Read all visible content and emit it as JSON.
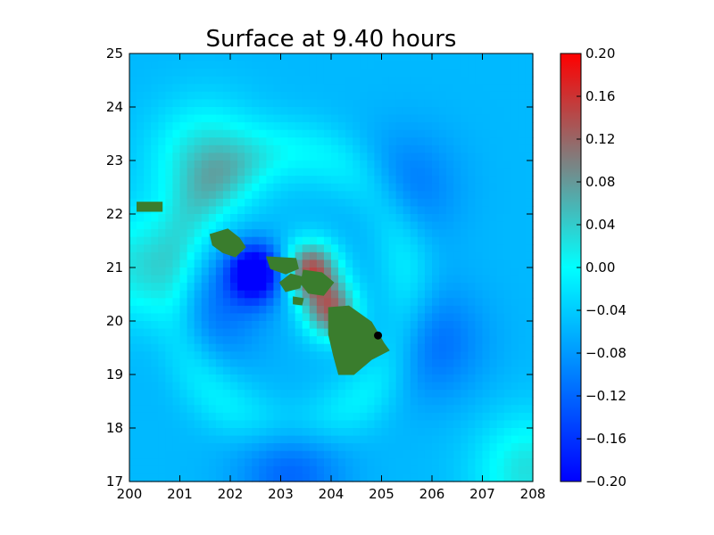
{
  "chart_data": {
    "type": "heatmap",
    "title": "Surface at 9.40 hours",
    "xlabel": "",
    "ylabel": "",
    "xlim": [
      200,
      208
    ],
    "ylim": [
      17,
      25
    ],
    "x_ticks": [
      "200",
      "201",
      "202",
      "203",
      "204",
      "205",
      "206",
      "207",
      "208"
    ],
    "y_ticks": [
      "17",
      "18",
      "19",
      "20",
      "21",
      "22",
      "23",
      "24",
      "25"
    ],
    "colorbar": {
      "range": [
        -0.2,
        0.2
      ],
      "ticks": [
        "0.20",
        "0.16",
        "0.12",
        "0.08",
        "0.04",
        "0.00",
        "−0.04",
        "−0.08",
        "−0.12",
        "−0.16",
        "−0.20"
      ],
      "colors": {
        "-0.20": "#0000ff",
        "0.00": "#00ffff",
        "0.10": "#7f7f7f",
        "0.20": "#ff0000"
      }
    },
    "land_color": "#3a7d2d",
    "marker": {
      "x": 204.93,
      "y": 19.73,
      "color": "#000000"
    },
    "anomalies": [
      {
        "x": 202.5,
        "y": 20.9,
        "value": -0.19
      },
      {
        "x": 201.6,
        "y": 20.2,
        "value": -0.06
      },
      {
        "x": 203.6,
        "y": 20.95,
        "value": 0.19
      },
      {
        "x": 204.0,
        "y": 20.2,
        "value": 0.17
      },
      {
        "x": 201.5,
        "y": 23.0,
        "value": 0.09
      },
      {
        "x": 200.2,
        "y": 21.0,
        "value": 0.08
      },
      {
        "x": 207.9,
        "y": 17.2,
        "value": 0.08
      },
      {
        "x": 203.2,
        "y": 17.3,
        "value": -0.07
      },
      {
        "x": 206.0,
        "y": 19.6,
        "value": -0.06
      },
      {
        "x": 205.5,
        "y": 22.5,
        "value": -0.05
      }
    ]
  }
}
